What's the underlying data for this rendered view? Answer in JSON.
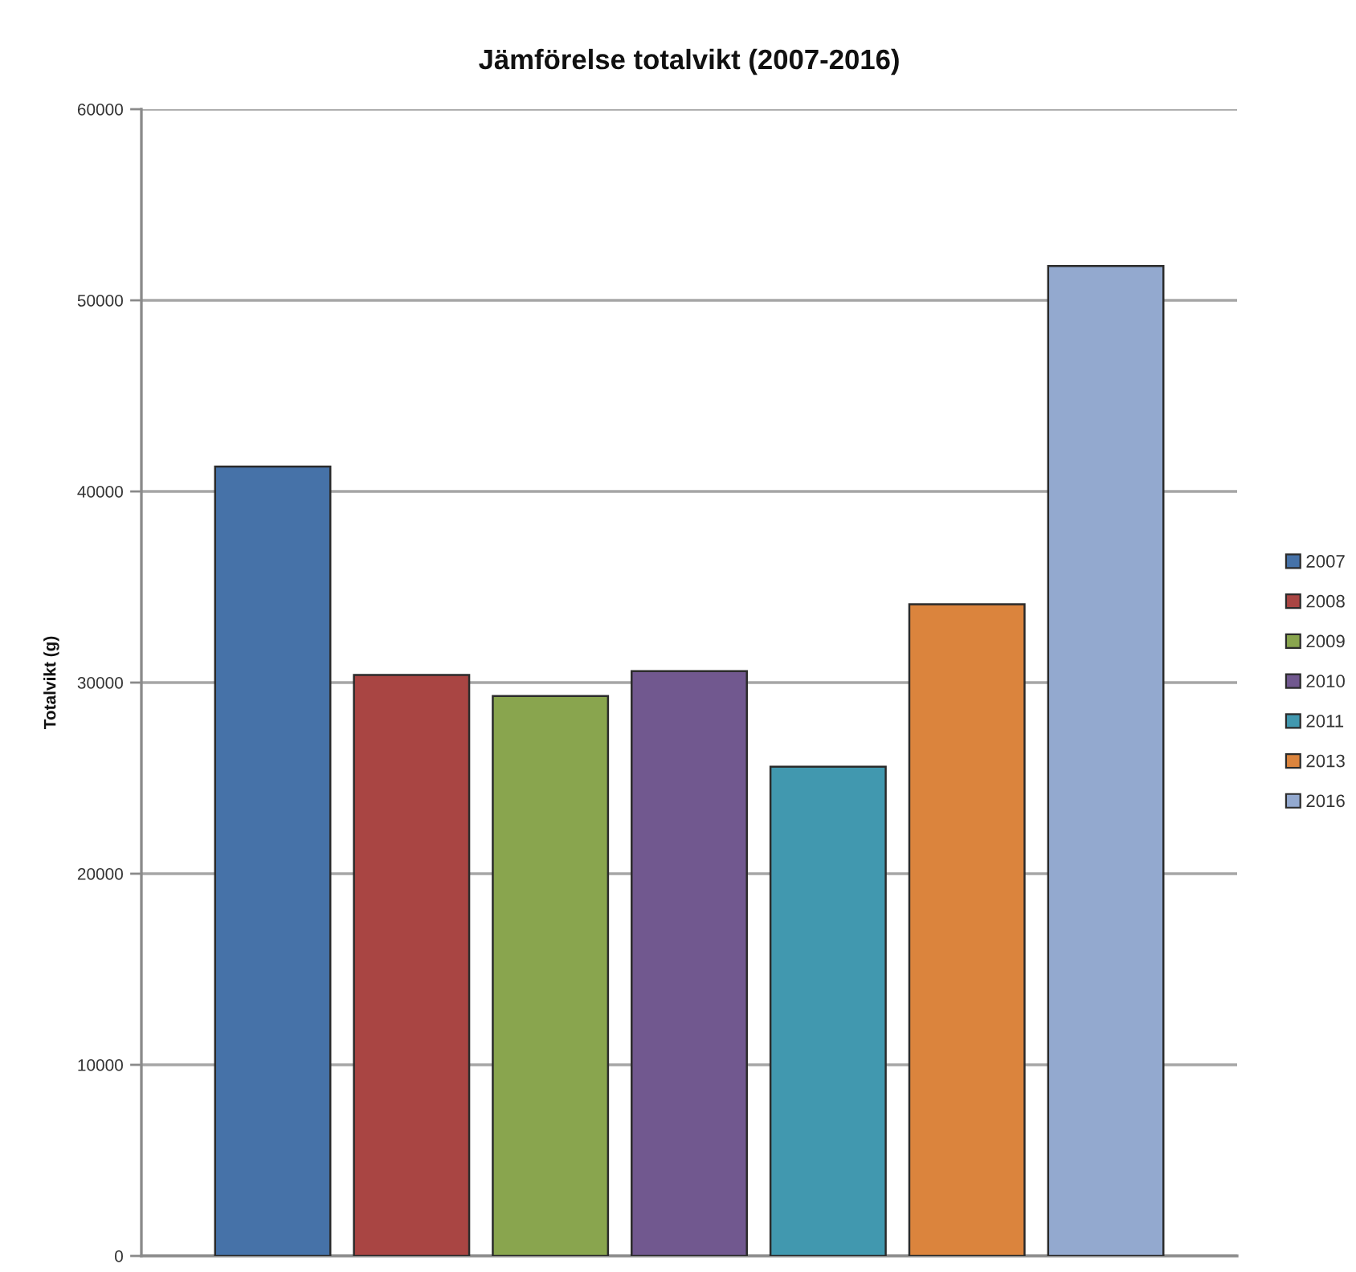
{
  "chart_data": {
    "type": "bar",
    "title": "Jämförelse totalvikt (2007-2016)",
    "ylabel": "Totalvikt (g)",
    "categories": [
      null
    ],
    "series": [
      {
        "name": "2007",
        "color": "#4672a8",
        "values": [
          41300
        ]
      },
      {
        "name": "2008",
        "color": "#a94543",
        "values": [
          30400
        ]
      },
      {
        "name": "2009",
        "color": "#89a54e",
        "values": [
          29300
        ]
      },
      {
        "name": "2010",
        "color": "#71588f",
        "values": [
          30600
        ]
      },
      {
        "name": "2011",
        "color": "#4198af",
        "values": [
          25600
        ]
      },
      {
        "name": "2013",
        "color": "#db843d",
        "values": [
          34100
        ]
      },
      {
        "name": "2016",
        "color": "#93a9cf",
        "values": [
          51800
        ]
      }
    ],
    "ylim": [
      0,
      60000
    ],
    "yticks": [
      0,
      10000,
      20000,
      30000,
      40000,
      50000,
      60000
    ],
    "grid": "y",
    "legend": "right"
  }
}
